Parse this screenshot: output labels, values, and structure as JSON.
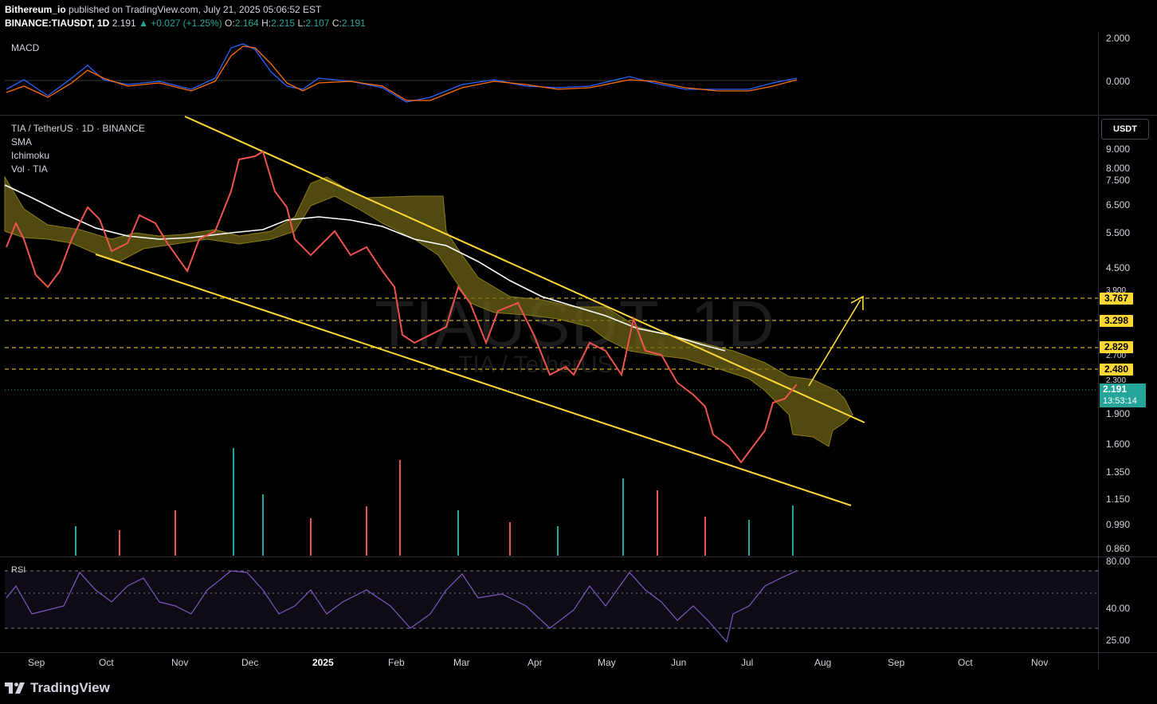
{
  "header": {
    "publisher": "Bithereum_io",
    "published_text": " published on TradingView.com, July 21, 2025 05:06:52 EST",
    "symbol": "BINANCE:TIAUSDT, 1D",
    "last": "2.191",
    "change": "▲ +0.027 (+1.25%)",
    "o_label": "O:",
    "o_value": "2.164",
    "h_label": "H:",
    "h_value": "2.215",
    "l_label": "L:",
    "l_value": "2.107",
    "c_label": "C:",
    "c_value": "2.191"
  },
  "macd": {
    "label": "MACD",
    "scale": [
      "2.000",
      "0.000"
    ]
  },
  "main": {
    "title": "TIA / TetherUS · 1D · BINANCE",
    "indicators": [
      "SMA",
      "Ichimoku",
      "Vol · TIA"
    ],
    "unit": "USDT",
    "watermark": "TIAUSDT, 1D",
    "watermark_sub": "TIA / TetherUS",
    "price_scale": [
      "9.000",
      "8.000",
      "7.500",
      "6.500",
      "5.500",
      "4.500",
      "3.900",
      "2.700",
      "2.300",
      "1.900",
      "1.600",
      "1.350",
      "1.150",
      "0.990",
      "0.860"
    ],
    "levels": [
      "3.767",
      "3.298",
      "2.829",
      "2.480"
    ],
    "current_price": "2.191",
    "countdown": "13:53:14"
  },
  "rsi": {
    "label": "RSI",
    "scale": [
      "80.00",
      "40.00",
      "25.00"
    ]
  },
  "time_axis": [
    "Sep",
    "Oct",
    "Nov",
    "Dec",
    "2025",
    "Feb",
    "Mar",
    "Apr",
    "May",
    "Jun",
    "Jul",
    "Aug",
    "Sep",
    "Oct",
    "Nov"
  ],
  "footer": {
    "brand": "TradingView"
  },
  "colors": {
    "up": "#26a69a",
    "down": "#ef5350",
    "trendline": "#fdd835",
    "cloud": "#6b6216",
    "rsi": "#7e57c2",
    "sma": "#ffffff"
  }
}
